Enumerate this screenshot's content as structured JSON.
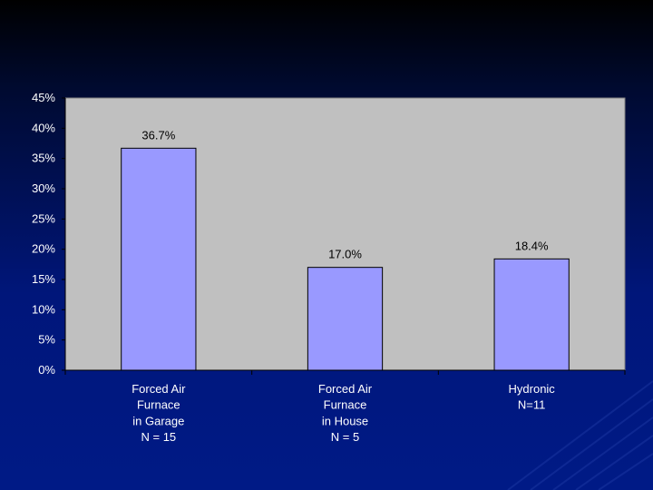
{
  "chart_data": {
    "type": "bar",
    "categories": [
      [
        "Forced Air",
        "Furnace",
        "in Garage",
        "N = 15"
      ],
      [
        "Forced Air",
        "Furnace",
        "in House",
        "N = 5"
      ],
      [
        "Hydronic",
        "N=11"
      ]
    ],
    "values": [
      36.7,
      17.0,
      18.4
    ],
    "data_labels": [
      "36.7%",
      "17.0%",
      "18.4%"
    ],
    "yticks": [
      "0%",
      "5%",
      "10%",
      "15%",
      "20%",
      "25%",
      "30%",
      "35%",
      "40%",
      "45%"
    ],
    "ylim": [
      0,
      45
    ],
    "title": "",
    "xlabel": "",
    "ylabel": "",
    "grid": false,
    "legend": "none",
    "colors": {
      "plot_bg": "#c0c0c0",
      "bar_fill": "#9999ff",
      "bar_stroke": "#000000",
      "tick_text": "#ffffff",
      "data_label_text": "#000000"
    }
  }
}
